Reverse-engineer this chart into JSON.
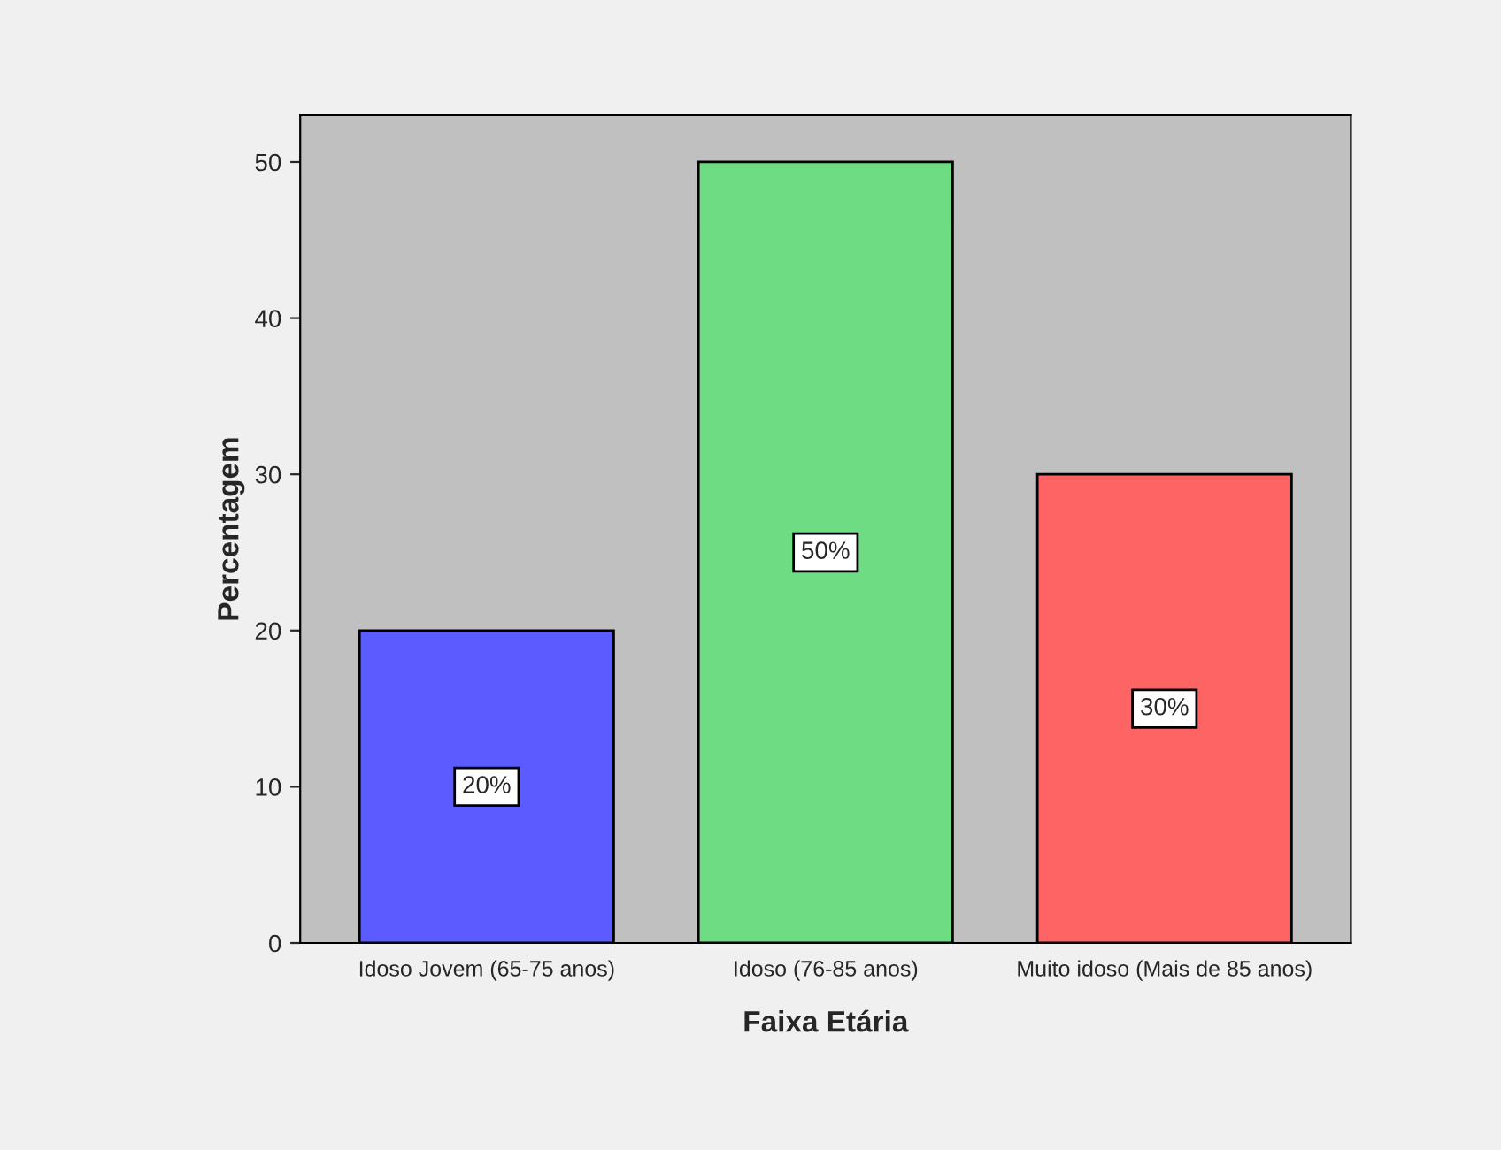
{
  "chart_data": {
    "type": "bar",
    "xlabel": "Faixa Etária",
    "ylabel": "Percentagem",
    "categories": [
      "Idoso Jovem (65-75 anos)",
      "Idoso (76-85 anos)",
      "Muito idoso (Mais de 85 anos)"
    ],
    "values": [
      20,
      50,
      30
    ],
    "colors": [
      "#5a5cff",
      "#6edc82",
      "#ff6464"
    ],
    "value_labels": [
      "20%",
      "50%",
      "30%"
    ],
    "ylim": [
      0,
      53
    ],
    "yticks": [
      0,
      10,
      20,
      30,
      40,
      50
    ],
    "grid": false,
    "legend": false
  }
}
